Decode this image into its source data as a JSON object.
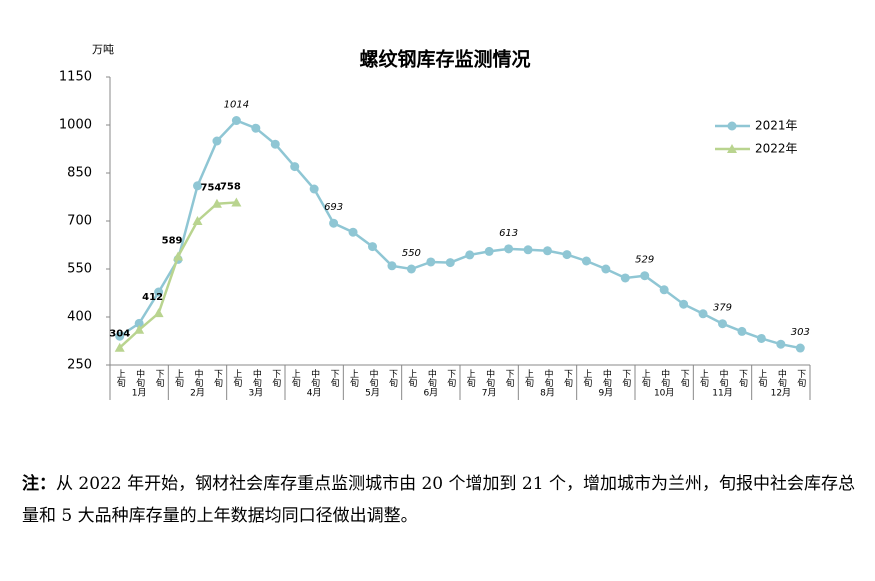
{
  "chart_data": {
    "type": "line",
    "title": "螺纹钢库存监测情况",
    "y_unit": "万吨",
    "categories": [
      "上旬",
      "中旬",
      "下旬",
      "上旬",
      "中旬",
      "下旬",
      "上旬",
      "中旬",
      "下旬",
      "上旬",
      "中旬",
      "下旬",
      "上旬",
      "中旬",
      "下旬",
      "上旬",
      "中旬",
      "下旬",
      "上旬",
      "中旬",
      "下旬",
      "上旬",
      "中旬",
      "下旬",
      "上旬",
      "中旬",
      "下旬",
      "上旬",
      "中旬",
      "下旬",
      "上旬",
      "中旬",
      "下旬",
      "上旬",
      "中旬",
      "下旬"
    ],
    "groups": [
      "1月",
      "2月",
      "3月",
      "4月",
      "5月",
      "6月",
      "7月",
      "8月",
      "9月",
      "10月",
      "11月",
      "12月"
    ],
    "series": [
      {
        "name": "2021年",
        "color": "#8fc6d4",
        "marker": "circle",
        "values": [
          340,
          380,
          478,
          580,
          810,
          950,
          1014,
          990,
          940,
          870,
          800,
          693,
          665,
          620,
          560,
          550,
          572,
          570,
          594,
          605,
          613,
          610,
          607,
          595,
          575,
          550,
          522,
          529,
          485,
          440,
          410,
          379,
          355,
          333,
          315,
          303
        ],
        "value_labels": [
          null,
          null,
          null,
          null,
          null,
          null,
          "1014",
          null,
          null,
          null,
          null,
          "693",
          null,
          null,
          null,
          "550",
          null,
          null,
          null,
          null,
          "613",
          null,
          null,
          null,
          null,
          null,
          null,
          "529",
          null,
          null,
          null,
          "379",
          null,
          null,
          null,
          "303"
        ]
      },
      {
        "name": "2022年",
        "color": "#b9d48f",
        "marker": "triangle",
        "values": [
          304,
          360,
          412,
          589,
          700,
          754,
          758,
          null,
          null,
          null,
          null,
          null,
          null,
          null,
          null,
          null,
          null,
          null,
          null,
          null,
          null,
          null,
          null,
          null,
          null,
          null,
          null,
          null,
          null,
          null,
          null,
          null,
          null,
          null,
          null,
          null
        ],
        "value_labels": [
          "304",
          null,
          "412",
          "589",
          null,
          "754",
          "758",
          null,
          null,
          null,
          null,
          null,
          null,
          null,
          null,
          null,
          null,
          null,
          null,
          null,
          null,
          null,
          null,
          null,
          null,
          null,
          null,
          null,
          null,
          null,
          null,
          null,
          null,
          null,
          null,
          null
        ]
      }
    ],
    "ylim": [
      250,
      1150
    ],
    "yticks": [
      250,
      400,
      550,
      700,
      850,
      1000,
      1150
    ],
    "grid": false,
    "legend": "upper right"
  },
  "note": {
    "label": "注：",
    "text": "从 2022 年开始，钢材社会库存重点监测城市由 20 个增加到 21 个，增加城市为兰州，旬报中社会库存总量和 5 大品种库存量的上年数据均同口径做出调整。"
  }
}
